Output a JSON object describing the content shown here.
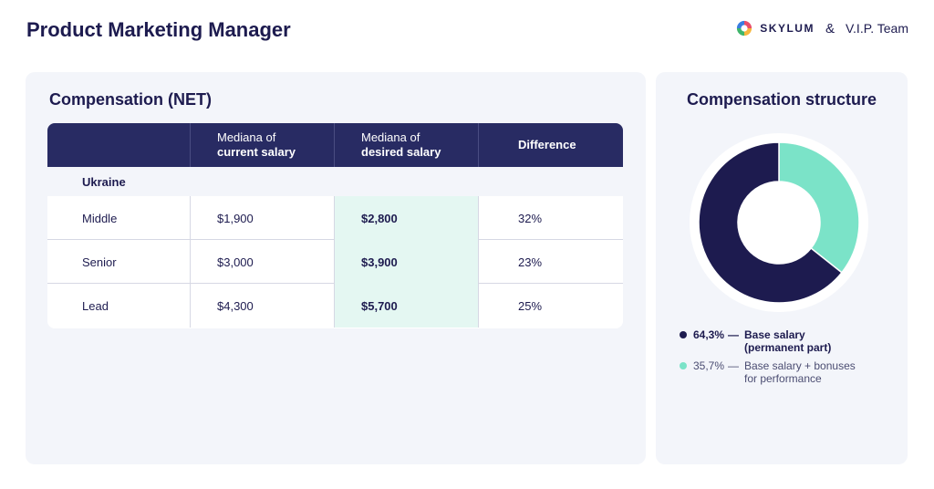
{
  "header": {
    "title": "Product Marketing Manager",
    "logo_skylum": "SKYLUM",
    "ampersand": "&",
    "logo_vip": "V.I.P. Team"
  },
  "compensation_net": {
    "title": "Compensation (NET)",
    "columns": [
      {
        "line1": "",
        "line2": ""
      },
      {
        "line1": "Mediana of",
        "line2": "current salary"
      },
      {
        "line1": "Mediana of",
        "line2": "desired salary"
      },
      {
        "line1": "",
        "line2": "Difference"
      }
    ],
    "group": "Ukraine",
    "rows": [
      {
        "level": "Middle",
        "current": "$1,900",
        "desired": "$2,800",
        "difference": "32%"
      },
      {
        "level": "Senior",
        "current": "$3,000",
        "desired": "$3,900",
        "difference": "23%"
      },
      {
        "level": "Lead",
        "current": "$4,300",
        "desired": "$5,700",
        "difference": "25%"
      }
    ]
  },
  "compensation_structure": {
    "title": "Compensation structure",
    "legend": [
      {
        "pct": "64,3%",
        "dash": "—",
        "text_line1": "Base salary",
        "text_line2": "(permanent part)"
      },
      {
        "pct": "35,7%",
        "dash": "—",
        "text_line1": "Base salary + bonuses",
        "text_line2": "for performance"
      }
    ]
  },
  "chart_data": {
    "type": "pie",
    "categories": [
      "Base salary (permanent part)",
      "Base salary + bonuses for performance"
    ],
    "values": [
      64.3,
      35.7
    ],
    "colors": [
      "#1d1b4f",
      "#7be3c8"
    ]
  },
  "colors": {
    "navy": "#1d1b4f",
    "header_bg": "#282b63",
    "mint": "#7be3c8",
    "highlight": "#e4f7f2",
    "card_bg": "#f3f5fa"
  }
}
